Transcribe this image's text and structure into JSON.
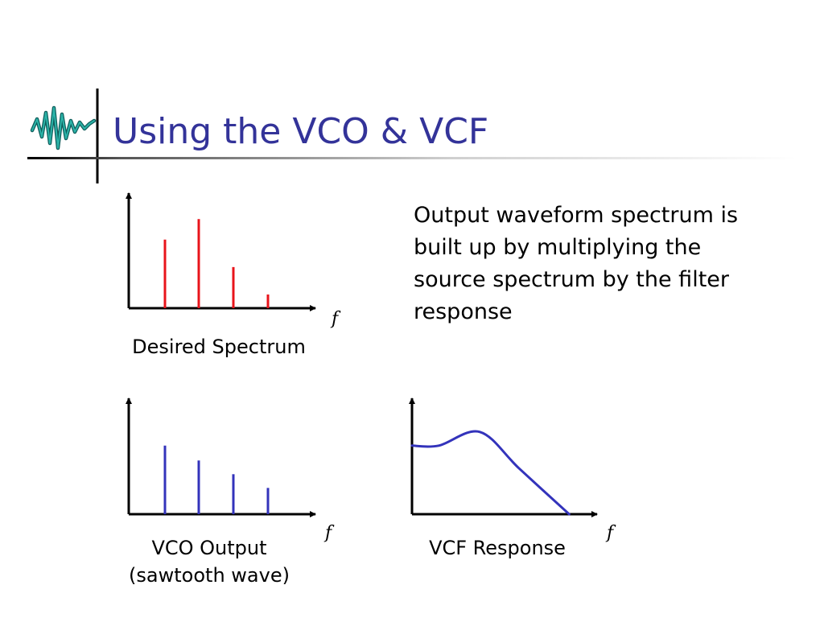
{
  "slide": {
    "title": "Using the VCO & VCF",
    "body_text": "Output waveform spectrum is built up by multiplying the source spectrum by the filter response"
  },
  "colors": {
    "title": "#333399",
    "desired_spectrum_lines": "#e8141b",
    "vco_lines": "#3333bb",
    "vcf_curve": "#3333bb",
    "logo": "#1f8f8a",
    "axes": "#000000"
  },
  "logo_icon": "waveform-logo-icon",
  "chart_data": [
    {
      "type": "bar",
      "name_ref": "desired-spectrum",
      "caption": "Desired Spectrum",
      "x_axis_label": "f",
      "values": [
        0.6,
        0.78,
        0.36,
        0.12
      ],
      "ylim": [
        0,
        1
      ]
    },
    {
      "type": "bar",
      "name_ref": "vco-output",
      "caption_lines": [
        "VCO Output",
        "(sawtooth wave)"
      ],
      "x_axis_label": "f",
      "values": [
        0.6,
        0.47,
        0.35,
        0.23
      ],
      "ylim": [
        0,
        1
      ]
    },
    {
      "type": "line",
      "name_ref": "vcf-response",
      "caption": "VCF Response",
      "x_axis_label": "f",
      "x": [
        0,
        0.15,
        0.38,
        0.6,
        0.88
      ],
      "y": [
        0.6,
        0.6,
        0.72,
        0.4,
        0.0
      ],
      "ylim": [
        0,
        1
      ]
    }
  ]
}
